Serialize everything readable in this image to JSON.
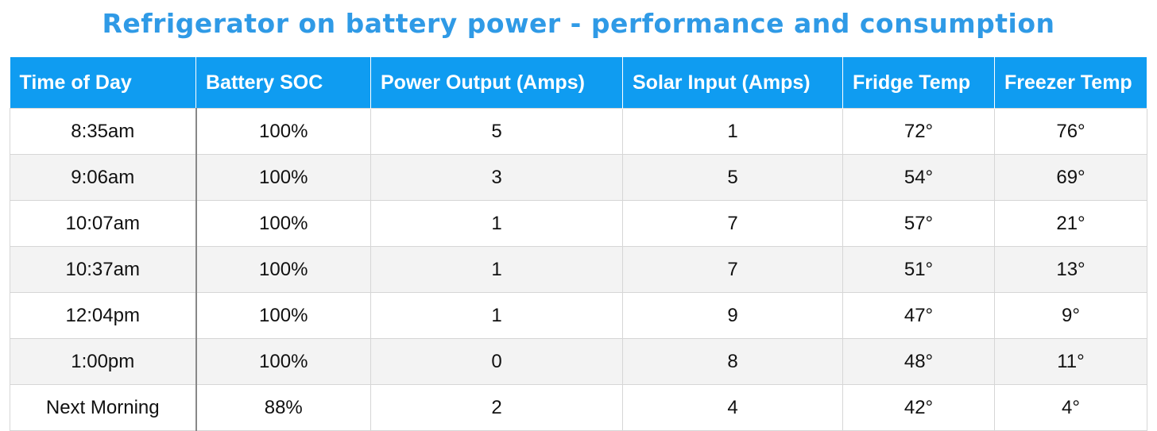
{
  "header": {
    "title": "Refrigerator on battery power - performance and consumption"
  },
  "table": {
    "columns": [
      "Time of Day",
      "Battery SOC",
      "Power Output (Amps)",
      "Solar Input (Amps)",
      "Fridge Temp",
      "Freezer Temp"
    ],
    "rows": [
      [
        "8:35am",
        "100%",
        "5",
        "1",
        "72°",
        "76°"
      ],
      [
        "9:06am",
        "100%",
        "3",
        "5",
        "54°",
        "69°"
      ],
      [
        "10:07am",
        "100%",
        "1",
        "7",
        "57°",
        "21°"
      ],
      [
        "10:37am",
        "100%",
        "1",
        "7",
        "51°",
        "13°"
      ],
      [
        "12:04pm",
        "100%",
        "1",
        "9",
        "47°",
        "9°"
      ],
      [
        "1:00pm",
        "100%",
        "0",
        "8",
        "48°",
        "11°"
      ],
      [
        "Next Morning",
        "88%",
        "2",
        "4",
        "42°",
        "4°"
      ]
    ]
  }
}
